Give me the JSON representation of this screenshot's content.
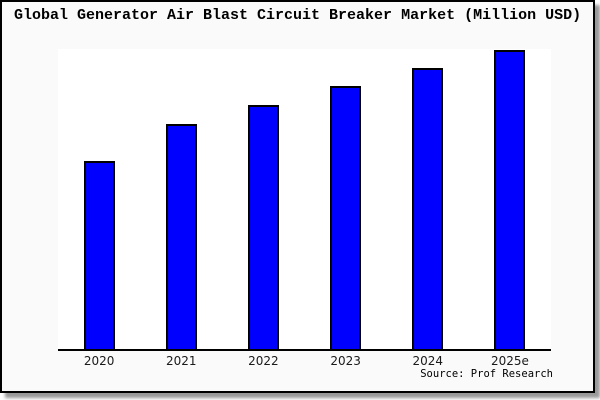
{
  "page": {
    "background_color": "#ffffff",
    "frame_background_color": "#fafafa",
    "frame_border_color": "#000000",
    "frame_shadow_color": "#999999"
  },
  "chart_data": {
    "type": "bar",
    "title": "Global Generator Air Blast Circuit Breaker Market (Million USD)",
    "categories": [
      "2020",
      "2021",
      "2022",
      "2023",
      "2024",
      "2025e"
    ],
    "values": [
      62.9,
      75.3,
      81.6,
      88.0,
      94.0,
      100.0
    ],
    "value_units": "relative bar height, tallest bar = 100 (no y-axis scale shown)",
    "xlabel": "",
    "ylabel": "",
    "ylim": [
      0,
      100
    ],
    "y_axis_labels_visible": false,
    "grid": false,
    "legend": false,
    "bar_color": "#0000ff",
    "bar_edge_color": "#000000",
    "axis_line_color": "#000000",
    "plot_background": "#ffffff",
    "max_bar_plot_fill_pct": 99.7,
    "source": "Source: Prof Research"
  }
}
